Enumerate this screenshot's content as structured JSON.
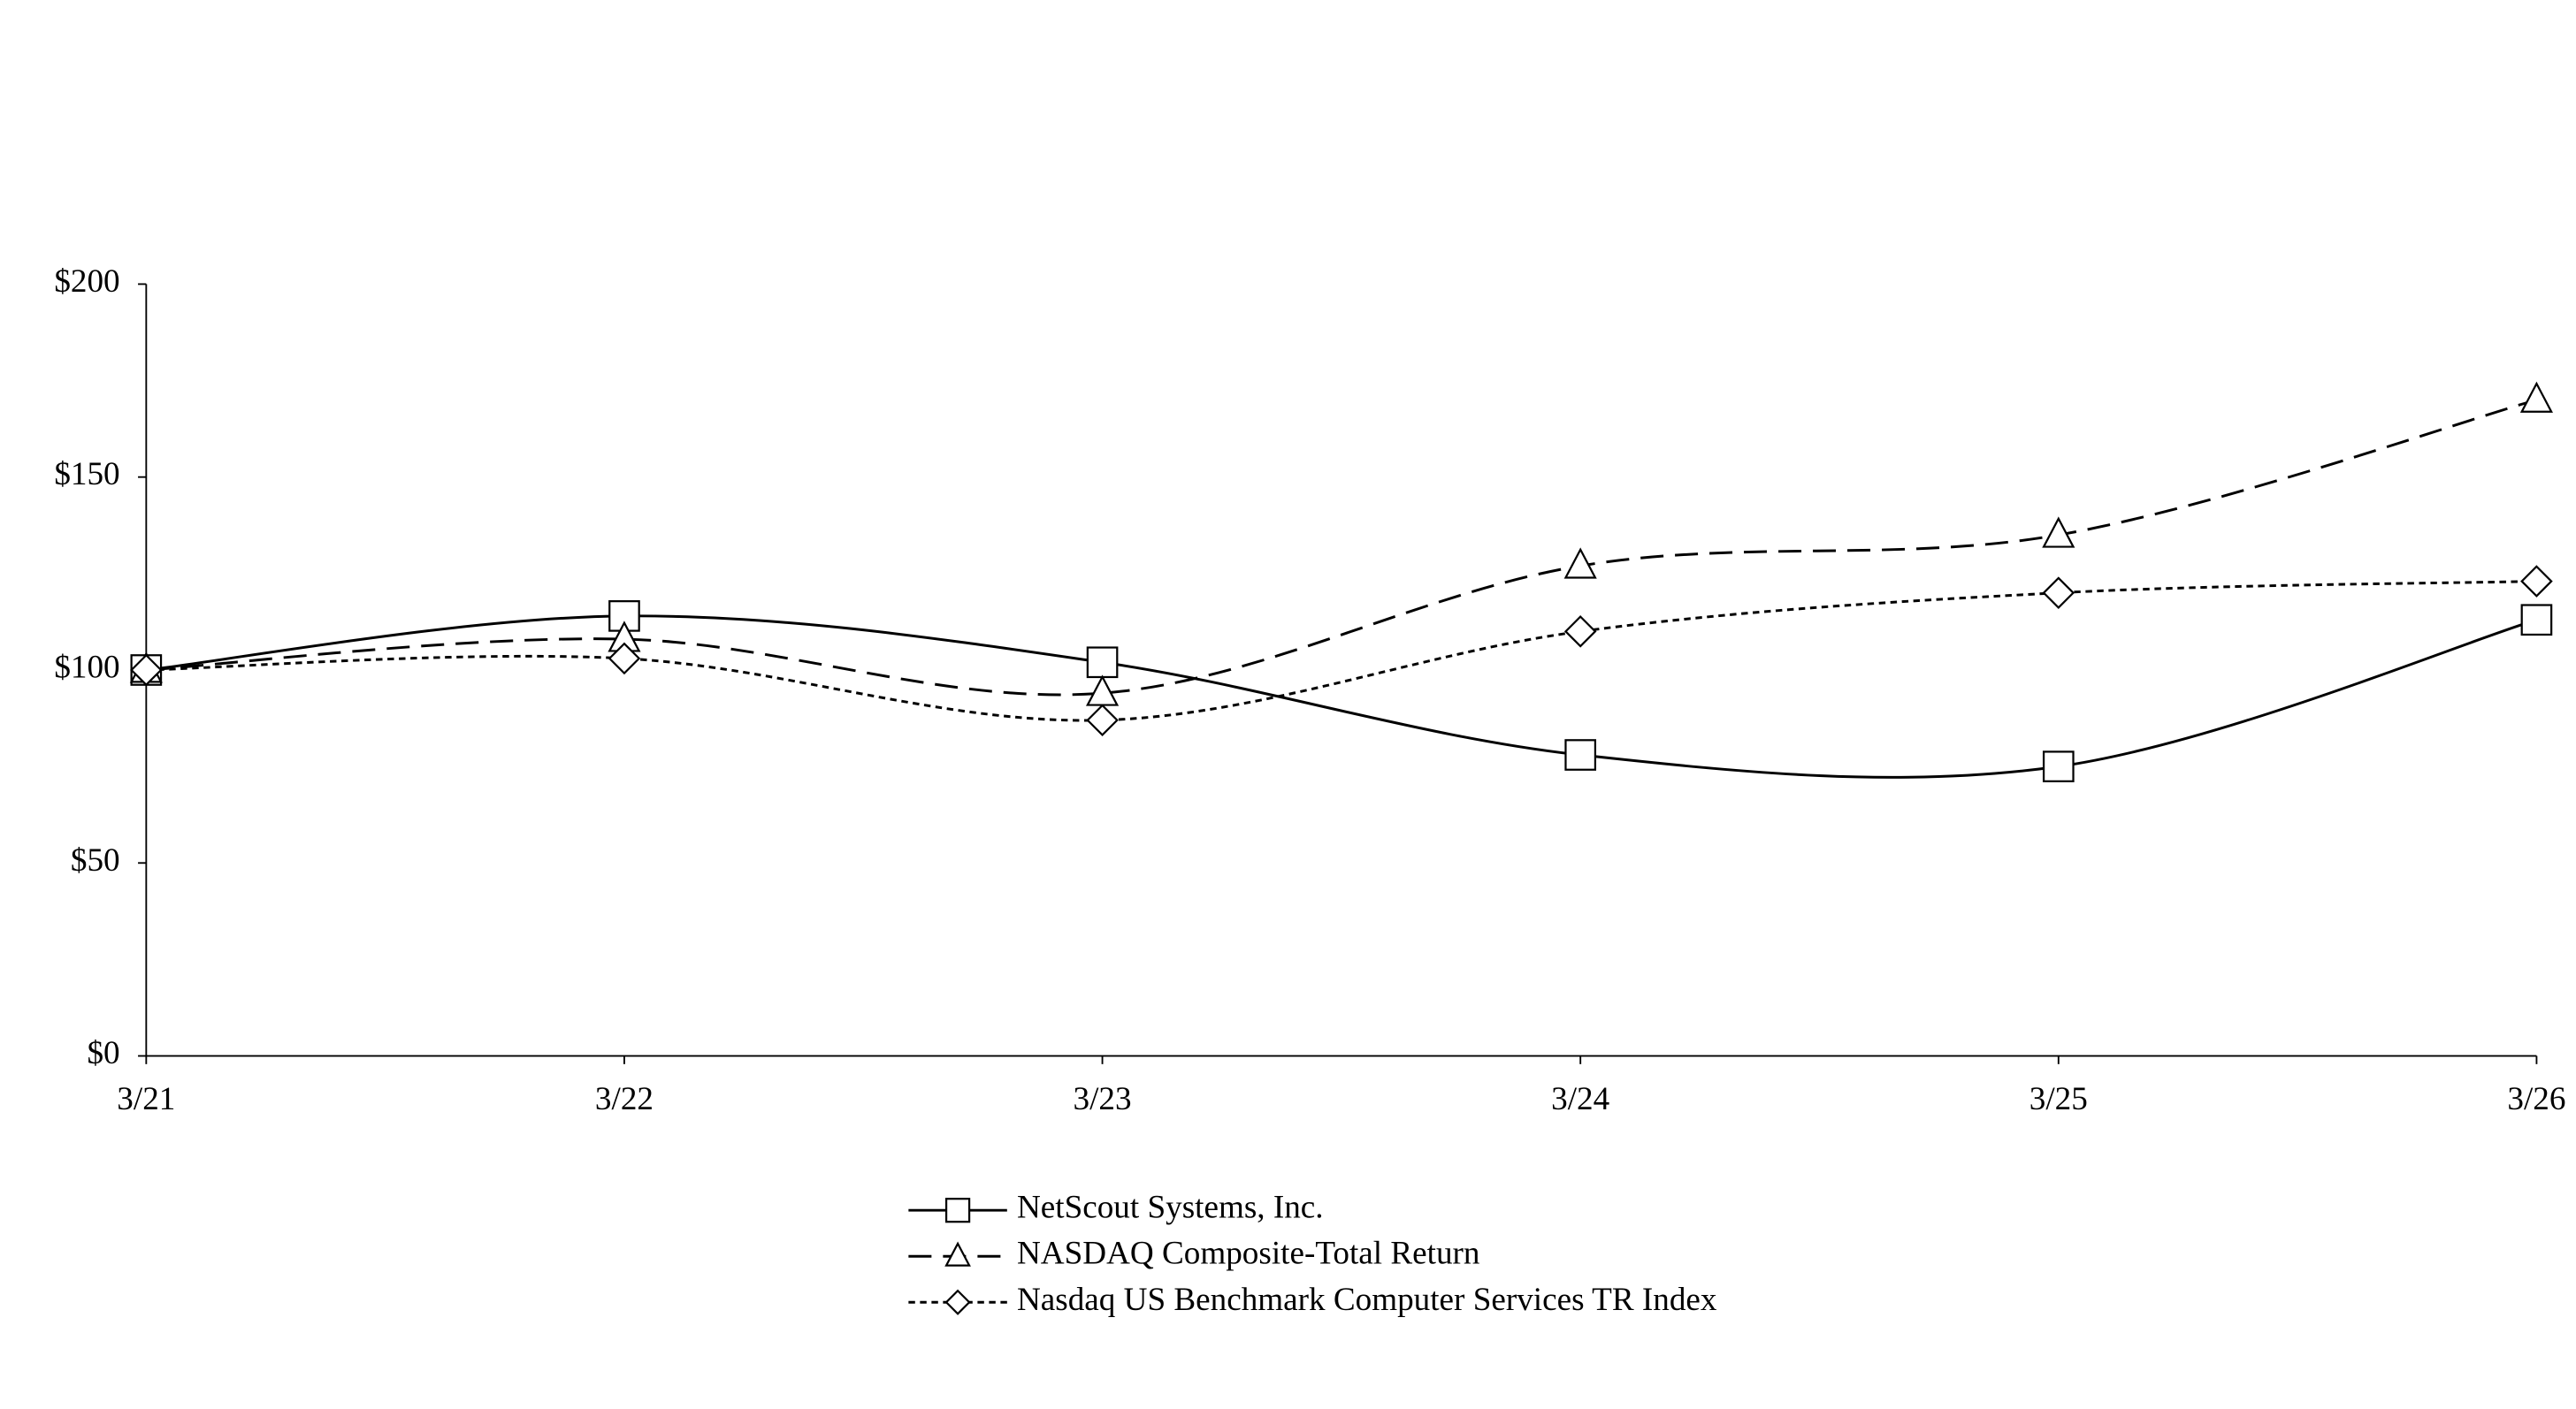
{
  "chart_data": {
    "type": "line",
    "categories": [
      "3/21",
      "3/22",
      "3/23",
      "3/24",
      "3/25",
      "3/26"
    ],
    "series": [
      {
        "name": "NetScout Systems, Inc.",
        "color": "#000000",
        "dash": "solid",
        "marker": "square",
        "values": [
          100,
          114,
          102,
          78,
          75,
          113
        ]
      },
      {
        "name": "NASDAQ Composite-Total Return",
        "color": "#000000",
        "dash": "dashed",
        "marker": "triangle",
        "values": [
          100,
          108,
          94,
          127,
          135,
          170
        ]
      },
      {
        "name": "Nasdaq US Benchmark Computer Services TR Index",
        "color": "#000000",
        "dash": "dotted",
        "marker": "diamond",
        "values": [
          100,
          103,
          87,
          110,
          120,
          123
        ]
      }
    ],
    "ylim": [
      0,
      200
    ],
    "yticks": [
      {
        "value": 0,
        "label": "$0"
      },
      {
        "value": 50,
        "label": "$50"
      },
      {
        "value": 100,
        "label": "$100"
      },
      {
        "value": 150,
        "label": "$150"
      },
      {
        "value": 200,
        "label": "$200"
      }
    ],
    "grid": false,
    "smooth": true,
    "legend": "bottom"
  }
}
